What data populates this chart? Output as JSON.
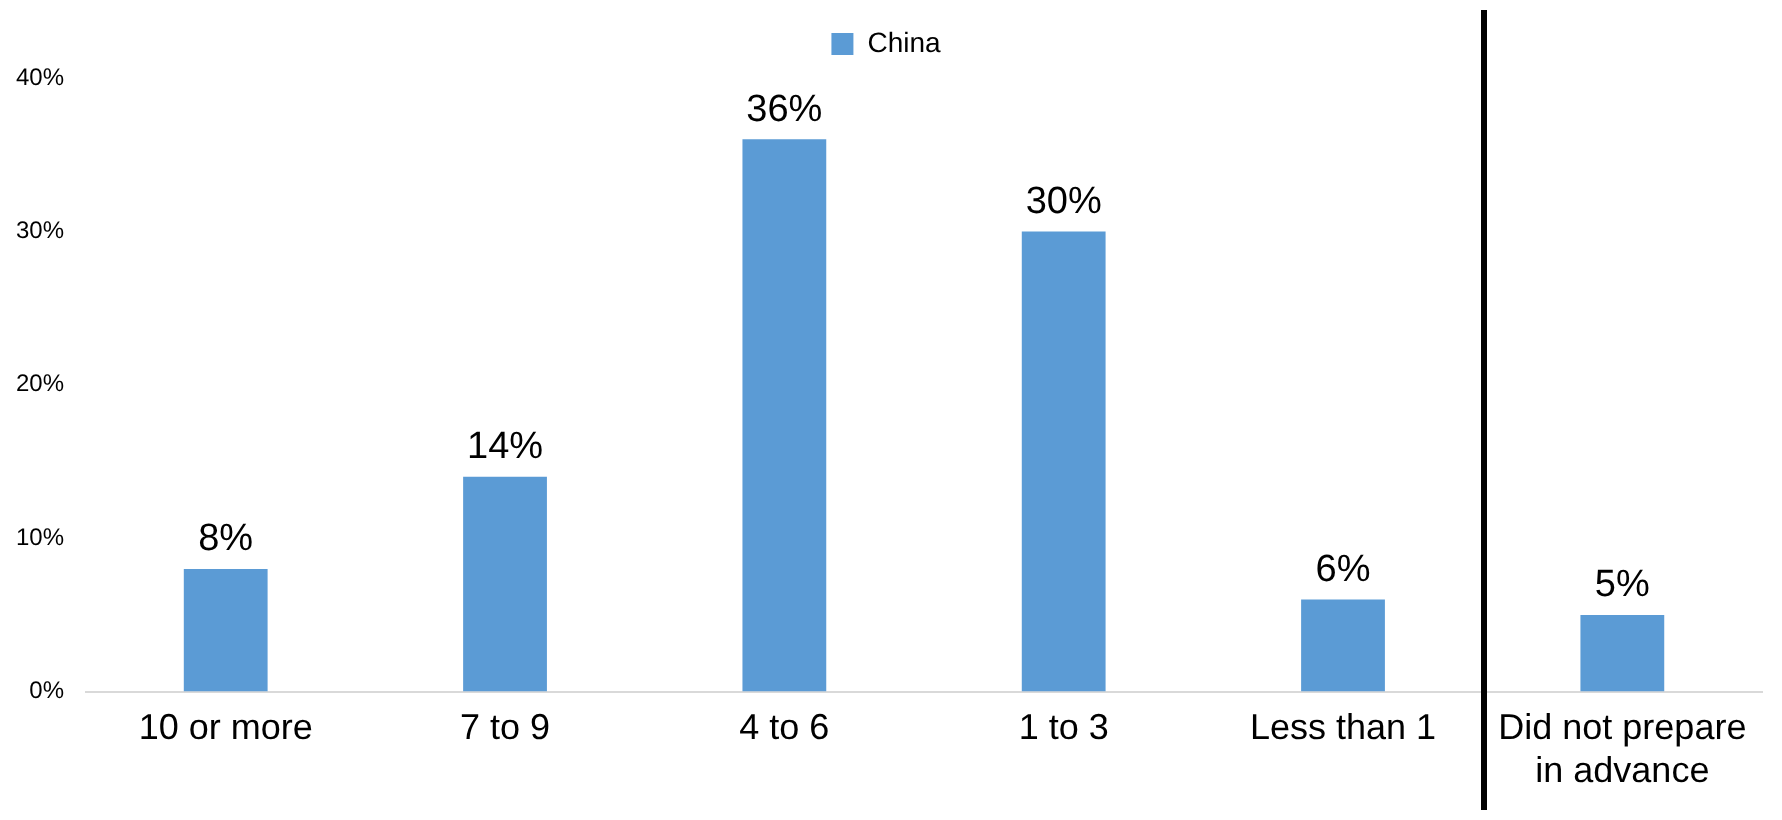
{
  "chart_data": {
    "type": "bar",
    "categories": [
      "10 or more",
      "7 to 9",
      "4 to 6",
      "1 to 3",
      "Less than 1",
      "Did not prepare in advance"
    ],
    "series": [
      {
        "name": "China",
        "color": "#5b9bd5",
        "values": [
          8,
          14,
          36,
          30,
          6,
          5
        ],
        "value_labels": [
          "8%",
          "14%",
          "36%",
          "30%",
          "6%",
          "5%"
        ]
      }
    ],
    "ylim": [
      0,
      40
    ],
    "yticks": [
      {
        "value": 0,
        "label": "0%"
      },
      {
        "value": 10,
        "label": "10%"
      },
      {
        "value": 20,
        "label": "20%"
      },
      {
        "value": 30,
        "label": "30%"
      },
      {
        "value": 40,
        "label": "40%"
      }
    ],
    "grid": false,
    "legend": "top"
  }
}
